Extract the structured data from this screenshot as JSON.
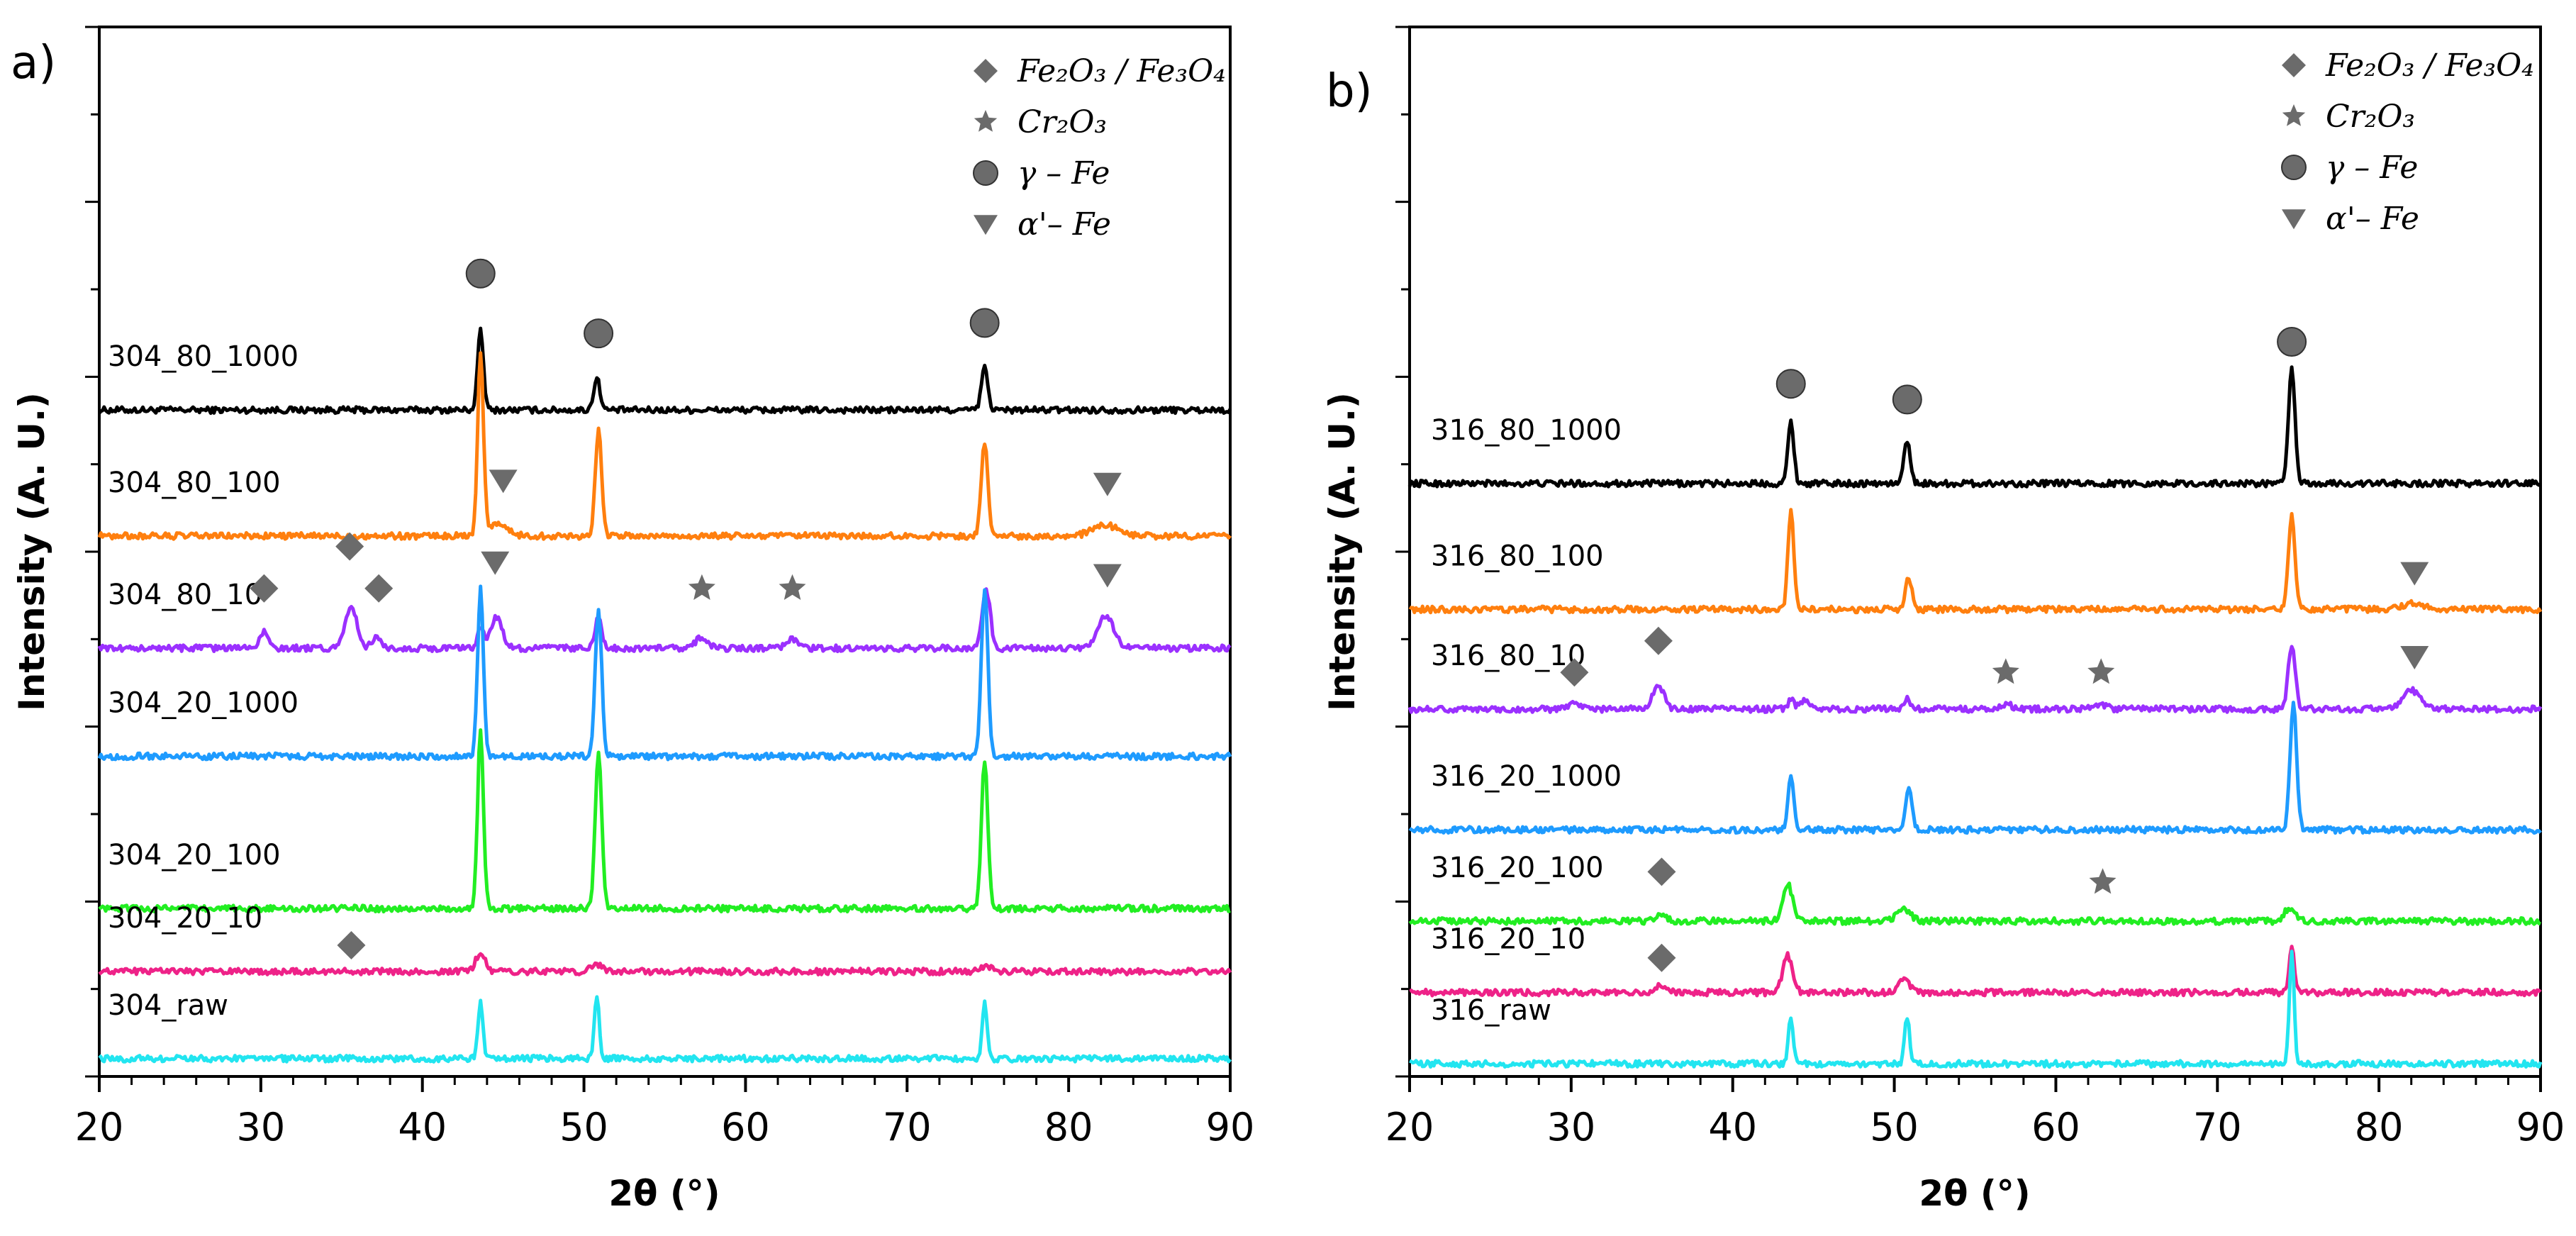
{
  "legend": {
    "items": [
      {
        "key": "iron_oxide",
        "symbol": "diamond",
        "label": "Fe₂O₃ / Fe₃O₄"
      },
      {
        "key": "chromia",
        "symbol": "star",
        "label": "Cr₂O₃"
      },
      {
        "key": "gamma_fe",
        "symbol": "circle",
        "label": "γ – Fe"
      },
      {
        "key": "alpha_fe",
        "symbol": "triangle-down",
        "label": "α'– Fe"
      }
    ]
  },
  "marker_color": "#6b6b6b",
  "chart_data": [
    {
      "type": "line",
      "panel": "a)",
      "xlabel": "2θ (°)",
      "ylabel": "Intensity (A. U.)",
      "xlim": [
        20,
        90
      ],
      "xticks": [
        20,
        30,
        40,
        50,
        60,
        70,
        80,
        90
      ],
      "series": [
        {
          "name": "304_80_1000",
          "color": "#000000",
          "baseline": 0.635,
          "peaks": [
            {
              "x": 43.6,
              "h": 0.075,
              "w": 0.18
            },
            {
              "x": 50.8,
              "h": 0.03,
              "w": 0.2
            },
            {
              "x": 74.8,
              "h": 0.04,
              "w": 0.2
            }
          ]
        },
        {
          "name": "304_80_100",
          "color": "#ff7f0e",
          "baseline": 0.515,
          "peaks": [
            {
              "x": 43.6,
              "h": 0.17,
              "w": 0.18
            },
            {
              "x": 50.9,
              "h": 0.1,
              "w": 0.2
            },
            {
              "x": 74.8,
              "h": 0.09,
              "w": 0.2
            },
            {
              "x": 44.6,
              "h": 0.012,
              "w": 0.6
            },
            {
              "x": 82.3,
              "h": 0.01,
              "w": 0.8
            }
          ]
        },
        {
          "name": "304_80_10",
          "color": "#9b30ff",
          "baseline": 0.408,
          "peaks": [
            {
              "x": 30.2,
              "h": 0.015,
              "w": 0.3
            },
            {
              "x": 35.6,
              "h": 0.04,
              "w": 0.35
            },
            {
              "x": 37.2,
              "h": 0.01,
              "w": 0.3
            },
            {
              "x": 43.6,
              "h": 0.02,
              "w": 0.2
            },
            {
              "x": 44.6,
              "h": 0.03,
              "w": 0.35
            },
            {
              "x": 50.9,
              "h": 0.03,
              "w": 0.2
            },
            {
              "x": 57.3,
              "h": 0.01,
              "w": 0.4
            },
            {
              "x": 62.9,
              "h": 0.008,
              "w": 0.4
            },
            {
              "x": 74.9,
              "h": 0.055,
              "w": 0.25
            },
            {
              "x": 82.3,
              "h": 0.03,
              "w": 0.5
            }
          ]
        },
        {
          "name": "304_20_1000",
          "color": "#1e9bff",
          "baseline": 0.305,
          "peaks": [
            {
              "x": 43.6,
              "h": 0.16,
              "w": 0.18
            },
            {
              "x": 50.9,
              "h": 0.14,
              "w": 0.2
            },
            {
              "x": 74.8,
              "h": 0.16,
              "w": 0.2
            }
          ]
        },
        {
          "name": "304_20_100",
          "color": "#22ee22",
          "baseline": 0.16,
          "peaks": [
            {
              "x": 43.6,
              "h": 0.17,
              "w": 0.18
            },
            {
              "x": 50.9,
              "h": 0.15,
              "w": 0.2
            },
            {
              "x": 74.8,
              "h": 0.14,
              "w": 0.2
            }
          ]
        },
        {
          "name": "304_20_10",
          "color": "#ee2288",
          "baseline": 0.1,
          "peaks": [
            {
              "x": 43.6,
              "h": 0.018,
              "w": 0.3
            },
            {
              "x": 50.8,
              "h": 0.006,
              "w": 0.35
            },
            {
              "x": 74.8,
              "h": 0.005,
              "w": 0.35
            }
          ]
        },
        {
          "name": "304_raw",
          "color": "#22e5f0",
          "baseline": 0.017,
          "peaks": [
            {
              "x": 43.6,
              "h": 0.055,
              "w": 0.15
            },
            {
              "x": 50.8,
              "h": 0.06,
              "w": 0.15
            },
            {
              "x": 74.8,
              "h": 0.055,
              "w": 0.15
            }
          ]
        }
      ],
      "markers": [
        {
          "symbol": "circle",
          "x": 43.6,
          "y": 0.765
        },
        {
          "symbol": "circle",
          "x": 50.9,
          "y": 0.708
        },
        {
          "symbol": "circle",
          "x": 74.8,
          "y": 0.718
        },
        {
          "symbol": "triangle-down",
          "x": 45.0,
          "y": 0.568
        },
        {
          "symbol": "triangle-down",
          "x": 82.4,
          "y": 0.565
        },
        {
          "symbol": "diamond",
          "x": 35.5,
          "y": 0.505
        },
        {
          "symbol": "diamond",
          "x": 30.2,
          "y": 0.465
        },
        {
          "symbol": "diamond",
          "x": 37.3,
          "y": 0.465
        },
        {
          "symbol": "triangle-down",
          "x": 44.5,
          "y": 0.49
        },
        {
          "symbol": "star",
          "x": 57.3,
          "y": 0.465
        },
        {
          "symbol": "star",
          "x": 62.9,
          "y": 0.465
        },
        {
          "symbol": "triangle-down",
          "x": 82.4,
          "y": 0.478
        },
        {
          "symbol": "diamond",
          "x": 35.6,
          "y": 0.125
        }
      ]
    },
    {
      "type": "line",
      "panel": "b)",
      "xlabel": "2θ (°)",
      "ylabel": "Intensity (A. U.)",
      "xlim": [
        20,
        90
      ],
      "xticks": [
        20,
        30,
        40,
        50,
        60,
        70,
        80,
        90
      ],
      "series": [
        {
          "name": "316_80_1000",
          "color": "#000000",
          "baseline": 0.565,
          "peaks": [
            {
              "x": 43.6,
              "h": 0.06,
              "w": 0.18
            },
            {
              "x": 50.8,
              "h": 0.04,
              "w": 0.2
            },
            {
              "x": 74.6,
              "h": 0.11,
              "w": 0.2
            }
          ]
        },
        {
          "name": "316_80_100",
          "color": "#ff7f0e",
          "baseline": 0.445,
          "peaks": [
            {
              "x": 43.6,
              "h": 0.095,
              "w": 0.18
            },
            {
              "x": 50.9,
              "h": 0.03,
              "w": 0.2
            },
            {
              "x": 74.6,
              "h": 0.09,
              "w": 0.2
            },
            {
              "x": 82.2,
              "h": 0.006,
              "w": 0.6
            }
          ]
        },
        {
          "name": "316_80_10",
          "color": "#9b30ff",
          "baseline": 0.35,
          "peaks": [
            {
              "x": 30.2,
              "h": 0.008,
              "w": 0.3
            },
            {
              "x": 35.4,
              "h": 0.022,
              "w": 0.35
            },
            {
              "x": 43.6,
              "h": 0.008,
              "w": 0.2
            },
            {
              "x": 44.5,
              "h": 0.01,
              "w": 0.3
            },
            {
              "x": 50.8,
              "h": 0.01,
              "w": 0.2
            },
            {
              "x": 56.9,
              "h": 0.005,
              "w": 0.4
            },
            {
              "x": 62.8,
              "h": 0.004,
              "w": 0.4
            },
            {
              "x": 74.6,
              "h": 0.06,
              "w": 0.22
            },
            {
              "x": 82.0,
              "h": 0.018,
              "w": 0.5
            }
          ]
        },
        {
          "name": "316_20_1000",
          "color": "#1e9bff",
          "baseline": 0.235,
          "peaks": [
            {
              "x": 43.6,
              "h": 0.05,
              "w": 0.18
            },
            {
              "x": 50.9,
              "h": 0.04,
              "w": 0.2
            },
            {
              "x": 74.7,
              "h": 0.12,
              "w": 0.2
            }
          ]
        },
        {
          "name": "316_20_100",
          "color": "#22ee22",
          "baseline": 0.148,
          "peaks": [
            {
              "x": 35.6,
              "h": 0.006,
              "w": 0.35
            },
            {
              "x": 43.4,
              "h": 0.035,
              "w": 0.3
            },
            {
              "x": 50.6,
              "h": 0.012,
              "w": 0.4
            },
            {
              "x": 74.5,
              "h": 0.013,
              "w": 0.35
            }
          ]
        },
        {
          "name": "316_20_10",
          "color": "#ee2288",
          "baseline": 0.08,
          "peaks": [
            {
              "x": 35.5,
              "h": 0.006,
              "w": 0.35
            },
            {
              "x": 43.4,
              "h": 0.035,
              "w": 0.3
            },
            {
              "x": 50.6,
              "h": 0.012,
              "w": 0.35
            },
            {
              "x": 74.6,
              "h": 0.045,
              "w": 0.15
            }
          ]
        },
        {
          "name": "316_raw",
          "color": "#22e5f0",
          "baseline": 0.012,
          "peaks": [
            {
              "x": 43.6,
              "h": 0.045,
              "w": 0.15
            },
            {
              "x": 50.8,
              "h": 0.045,
              "w": 0.15
            },
            {
              "x": 74.6,
              "h": 0.105,
              "w": 0.15
            }
          ]
        }
      ],
      "markers": [
        {
          "symbol": "circle",
          "x": 43.6,
          "y": 0.66
        },
        {
          "symbol": "circle",
          "x": 50.8,
          "y": 0.645
        },
        {
          "symbol": "circle",
          "x": 74.6,
          "y": 0.7
        },
        {
          "symbol": "triangle-down",
          "x": 82.2,
          "y": 0.48
        },
        {
          "symbol": "diamond",
          "x": 35.4,
          "y": 0.415
        },
        {
          "symbol": "diamond",
          "x": 30.2,
          "y": 0.385
        },
        {
          "symbol": "star",
          "x": 56.9,
          "y": 0.385
        },
        {
          "symbol": "star",
          "x": 62.8,
          "y": 0.385
        },
        {
          "symbol": "triangle-down",
          "x": 82.2,
          "y": 0.4
        },
        {
          "symbol": "diamond",
          "x": 35.6,
          "y": 0.195
        },
        {
          "symbol": "star",
          "x": 62.9,
          "y": 0.185
        },
        {
          "symbol": "diamond",
          "x": 35.6,
          "y": 0.113
        }
      ]
    }
  ]
}
